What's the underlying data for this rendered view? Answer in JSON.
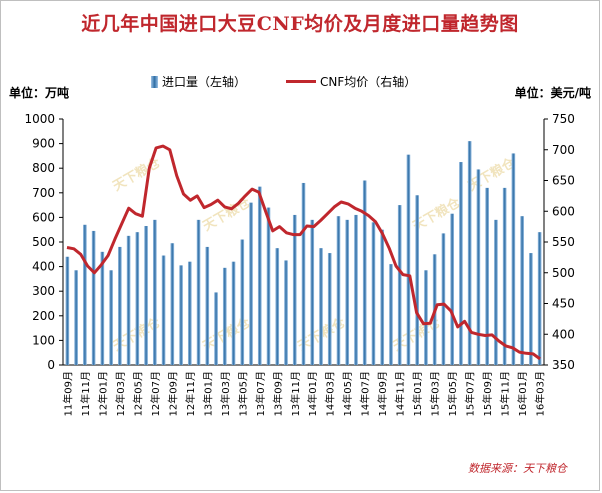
{
  "chart_data": {
    "type": "bar+line",
    "title": "近几年中国进口大豆CNF均价及月度进口量趋势图",
    "left_unit": "单位：万吨",
    "right_unit": "单位：美元/吨",
    "legend": {
      "bar": "进口量（左轴）",
      "line": "CNF均价（右轴）"
    },
    "source": "数据来源：天下粮仓",
    "watermark": "天下粮仓",
    "colors": {
      "bar": "#2e6da4",
      "bar_light": "#9ec3e6",
      "line": "#c0272d",
      "title": "#c0272d"
    },
    "left_axis": {
      "min": 0,
      "max": 1000,
      "step": 100
    },
    "right_axis": {
      "min": 350,
      "max": 750,
      "step": 50
    },
    "x_tick_labels": [
      "11年09月",
      "11年11月",
      "12年01月",
      "12年03月",
      "12年05月",
      "12年07月",
      "12年09月",
      "12年11月",
      "13年01月",
      "13年03月",
      "13年05月",
      "13年07月",
      "13年09月",
      "13年11月",
      "14年01月",
      "14年03月",
      "14年05月",
      "14年07月",
      "14年09月",
      "14年11月",
      "15年01月",
      "15年03月",
      "15年05月",
      "15年07月",
      "15年09月",
      "15年11月",
      "16年01月",
      "16年03月"
    ],
    "series": [
      {
        "name": "进口量（左轴）",
        "axis": "left",
        "kind": "bar",
        "values": [
          440,
          385,
          570,
          545,
          460,
          385,
          480,
          525,
          540,
          565,
          590,
          445,
          495,
          405,
          420,
          590,
          480,
          295,
          395,
          420,
          510,
          660,
          725,
          640,
          475,
          425,
          610,
          740,
          590,
          475,
          455,
          605,
          590,
          610,
          750,
          580,
          550,
          410,
          650,
          855,
          690,
          385,
          450,
          535,
          615,
          825,
          910,
          795,
          720,
          590,
          720,
          860,
          605,
          455,
          540
        ]
      },
      {
        "name": "CNF均价（右轴）",
        "axis": "right",
        "kind": "line",
        "values": [
          541,
          539,
          530,
          511,
          500,
          513,
          528,
          555,
          580,
          605,
          596,
          592,
          670,
          703,
          706,
          700,
          658,
          628,
          618,
          625,
          606,
          611,
          618,
          607,
          604,
          613,
          625,
          636,
          631,
          599,
          568,
          575,
          565,
          562,
          562,
          576,
          575,
          585,
          596,
          607,
          615,
          612,
          605,
          600,
          593,
          583,
          564,
          540,
          511,
          497,
          495,
          435,
          417,
          418,
          448,
          449,
          438,
          412,
          421,
          403,
          400,
          398,
          399,
          389,
          381,
          378,
          371,
          369,
          368,
          360
        ]
      }
    ]
  }
}
